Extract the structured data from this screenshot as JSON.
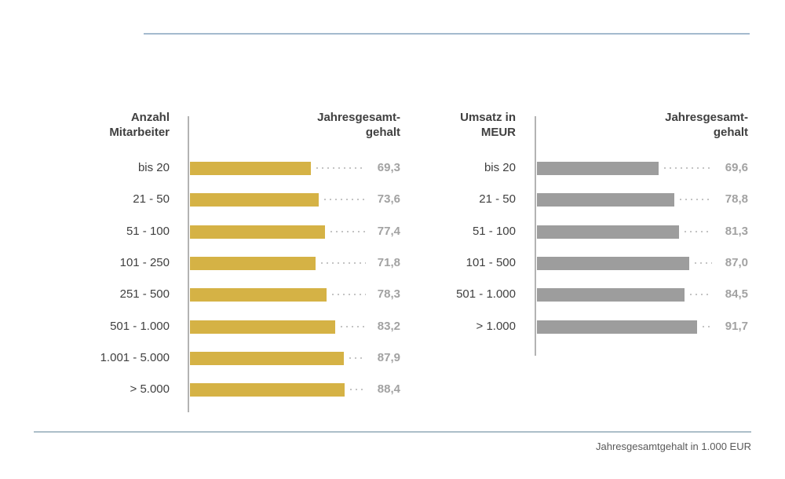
{
  "page": {
    "footer_note": "Jahresgesamtgehalt in 1.000 EUR"
  },
  "colors": {
    "page_background": "#FFFFFF",
    "bar_gold": "#D5B245",
    "bar_gray": "#9D9D9D",
    "axis_line": "#B3B3B3",
    "leader_dots": "#C4C4C4",
    "value_text": "#A2A2A2",
    "category_text": "#404040",
    "header_text": "#404040",
    "rule_top": "#A4BACE",
    "rule_bottom": "#ACBEC9",
    "footer_text": "#595959"
  },
  "chart_data": [
    {
      "type": "bar",
      "name": "chart-salary-by-employee-count",
      "orientation": "horizontal",
      "axis_title": "Anzahl Mitarbeiter",
      "axis_title_lines": [
        "Anzahl",
        "Mitarbeiter"
      ],
      "value_title": "Jahresgesamtgehalt",
      "value_title_lines": [
        "Jahresgesamt-",
        "gehalt"
      ],
      "unit": "1.000 EUR",
      "xlim": [
        0,
        100
      ],
      "grid": false,
      "legend": false,
      "categories": [
        "bis 20",
        "21 - 50",
        "51 - 100",
        "101 - 250",
        "251 - 500",
        "501 - 1.000",
        "1.001 - 5.000",
        "> 5.000"
      ],
      "values": [
        69.3,
        73.6,
        77.4,
        71.8,
        78.3,
        83.2,
        87.9,
        88.4
      ],
      "value_labels": [
        "69,3",
        "73,6",
        "77,4",
        "71,8",
        "78,3",
        "83,2",
        "87,9",
        "88,4"
      ],
      "bar_color": "#D5B245"
    },
    {
      "type": "bar",
      "name": "chart-salary-by-revenue",
      "orientation": "horizontal",
      "axis_title": "Umsatz in MEUR",
      "axis_title_lines": [
        "Umsatz in",
        "MEUR"
      ],
      "value_title": "Jahresgesamtgehalt",
      "value_title_lines": [
        "Jahresgesamt-",
        "gehalt"
      ],
      "unit": "1.000 EUR",
      "xlim": [
        0,
        100
      ],
      "grid": false,
      "legend": false,
      "categories": [
        "bis 20",
        "21 - 50",
        "51 - 100",
        "101 - 500",
        "501 - 1.000",
        "> 1.000"
      ],
      "values": [
        69.6,
        78.8,
        81.3,
        87.0,
        84.5,
        91.7
      ],
      "value_labels": [
        "69,6",
        "78,8",
        "81,3",
        "87,0",
        "84,5",
        "91,7"
      ],
      "bar_color": "#9D9D9D"
    }
  ]
}
